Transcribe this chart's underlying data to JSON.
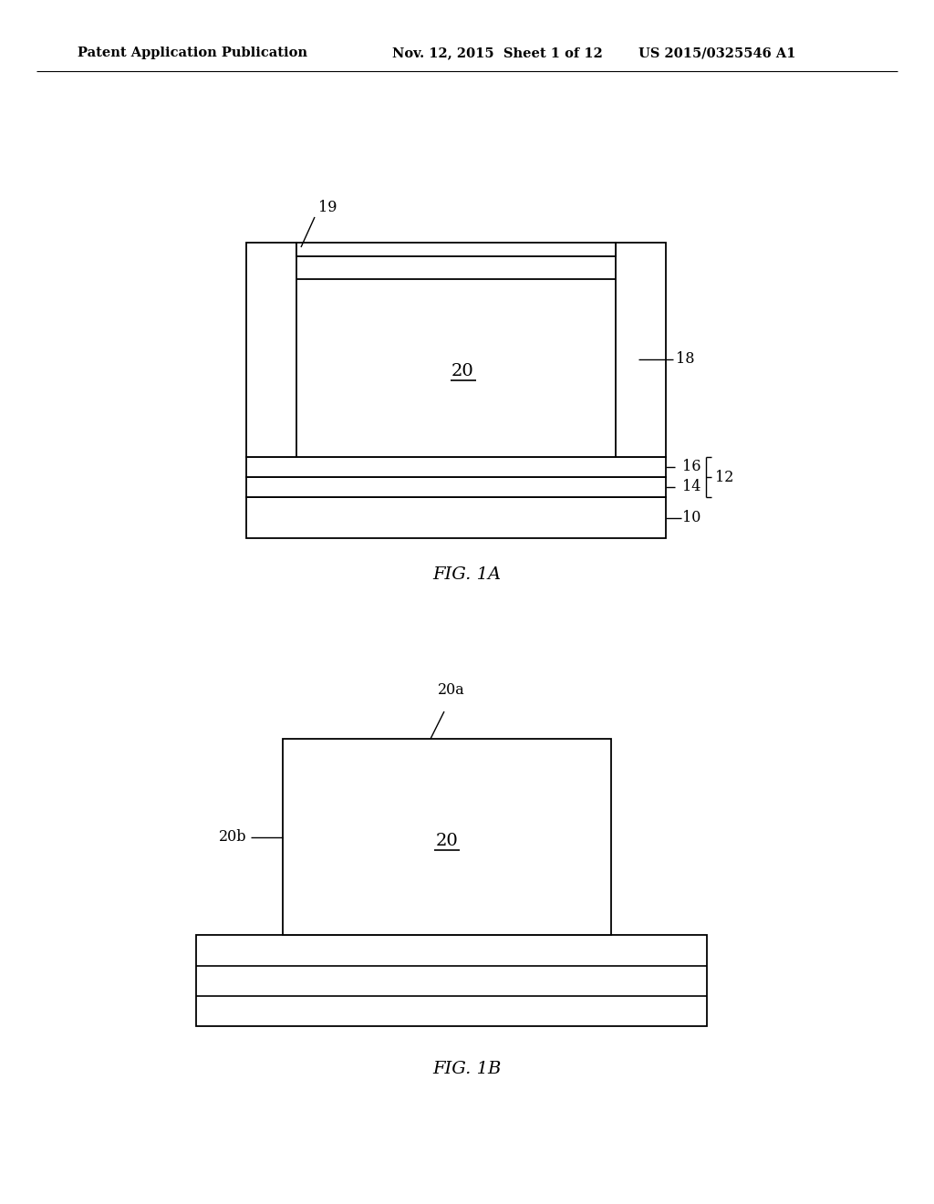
{
  "bg_color": "#ffffff",
  "header_left": "Patent Application Publication",
  "header_mid": "Nov. 12, 2015  Sheet 1 of 12",
  "header_right": "US 2015/0325546 A1",
  "fig1a_label": "FIG. 1A",
  "fig1b_label": "FIG. 1B",
  "lw": 1.3
}
